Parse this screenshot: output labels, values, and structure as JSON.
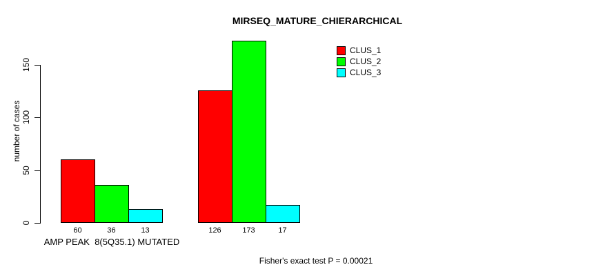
{
  "title": "MIRSEQ_MATURE_CHIERARCHICAL",
  "y_axis": {
    "label": "number of cases",
    "ticks": [
      0,
      50,
      100,
      150
    ]
  },
  "x_axis": {
    "group1_label": "AMP PEAK  8(5Q35.1) MUTATED"
  },
  "footer": {
    "text": "Fisher's exact test P = 0.00021"
  },
  "legend": {
    "position": "top-right"
  },
  "colors": {
    "clus_1": "#ff0000",
    "clus_2": "#00ff00",
    "clus_3": "#00ffff",
    "axis": "#000000",
    "background": "#ffffff"
  },
  "chart_data": {
    "type": "bar",
    "title": "MIRSEQ_MATURE_CHIERARCHICAL",
    "xlabel": "AMP PEAK  8(5Q35.1) MUTATED",
    "ylabel": "number of cases",
    "ylim": [
      0,
      175
    ],
    "yticks": [
      0,
      50,
      100,
      150
    ],
    "grid": false,
    "legend_position": "top-right",
    "categories": [
      "AMP PEAK  8(5Q35.1) MUTATED",
      ""
    ],
    "series": [
      {
        "name": "CLUS_1",
        "color": "#ff0000",
        "values": [
          60,
          126
        ]
      },
      {
        "name": "CLUS_2",
        "color": "#00ff00",
        "values": [
          36,
          173
        ]
      },
      {
        "name": "CLUS_3",
        "color": "#00ffff",
        "values": [
          13,
          17
        ]
      }
    ],
    "bar_value_labels": [
      [
        60,
        36,
        13
      ],
      [
        126,
        173,
        17
      ]
    ],
    "annotation": "Fisher's exact test P = 0.00021"
  }
}
